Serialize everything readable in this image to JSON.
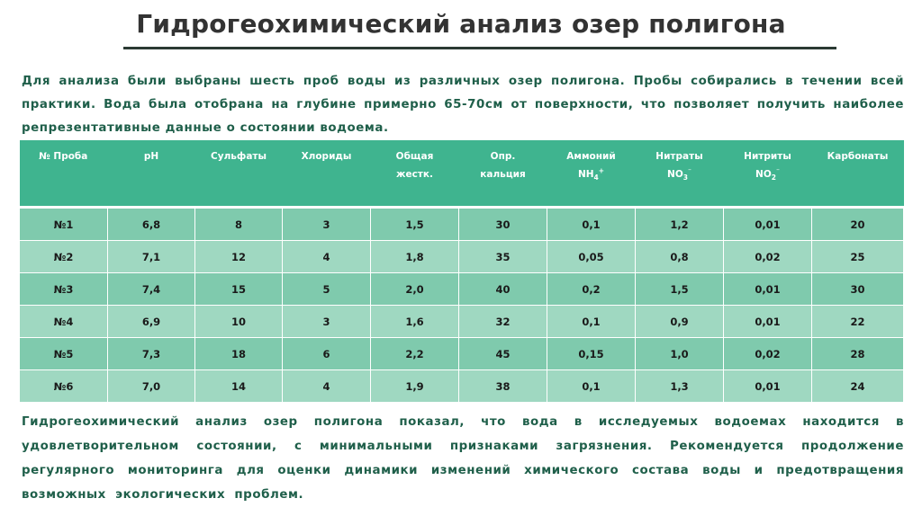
{
  "title": "Гидрогеохимический анализ озер полигона",
  "intro": "Для анализа были выбраны шесть проб воды из различных озер полигона. Пробы собирались в течении всей практики. Вода была отобрана на глубине примерно 65-70см от поверхности, что позволяет получить наиболее репрезентативные данные о состоянии водоема.",
  "table": {
    "headers": [
      {
        "l1": "№ Проба",
        "l2": "",
        "s": "",
        "st": ""
      },
      {
        "l1": "pH",
        "l2": "",
        "s": "",
        "st": ""
      },
      {
        "l1": "Сульфаты",
        "l2": "",
        "s": "",
        "st": ""
      },
      {
        "l1": "Хлориды",
        "l2": "",
        "s": "",
        "st": ""
      },
      {
        "l1": "Общая",
        "l2": "жестк.",
        "s": "",
        "st": ""
      },
      {
        "l1": "Опр.",
        "l2": "кальция",
        "s": "",
        "st": ""
      },
      {
        "l1": "Аммоний",
        "l2": "NH",
        "s": "4",
        "st": "+"
      },
      {
        "l1": "Нитраты",
        "l2": "NO",
        "s": "3",
        "st": "⁻"
      },
      {
        "l1": "Нитриты",
        "l2": "NO",
        "s": "2",
        "st": "⁻"
      },
      {
        "l1": "Карбонаты",
        "l2": "",
        "s": "",
        "st": ""
      }
    ],
    "rows": [
      [
        "№1",
        "6,8",
        "8",
        "3",
        "1,5",
        "30",
        "0,1",
        "1,2",
        "0,01",
        "20"
      ],
      [
        "№2",
        "7,1",
        "12",
        "4",
        "1,8",
        "35",
        "0,05",
        "0,8",
        "0,02",
        "25"
      ],
      [
        "№3",
        "7,4",
        "15",
        "5",
        "2,0",
        "40",
        "0,2",
        "1,5",
        "0,01",
        "30"
      ],
      [
        "№4",
        "6,9",
        "10",
        "3",
        "1,6",
        "32",
        "0,1",
        "0,9",
        "0,01",
        "22"
      ],
      [
        "№5",
        "7,3",
        "18",
        "6",
        "2,2",
        "45",
        "0,15",
        "1,0",
        "0,02",
        "28"
      ],
      [
        "№6",
        "7,0",
        "14",
        "4",
        "1,9",
        "38",
        "0,1",
        "1,3",
        "0,01",
        "24"
      ]
    ]
  },
  "conclusion": "Гидрогеохимический анализ озер полигона показал, что вода в исследуемых водоемах находится в удовлетворительном состоянии, с минимальными признаками загрязнения. Рекомендуется продолжение регулярного мониторинга для оценки динамики изменений химического состава воды и предотвращения возможных экологических проблем.",
  "colors": {
    "header_bg": "#3fb48f",
    "row_odd": "#7fcaad",
    "row_even": "#9fd8c1",
    "text_green": "#1f5f4a"
  }
}
